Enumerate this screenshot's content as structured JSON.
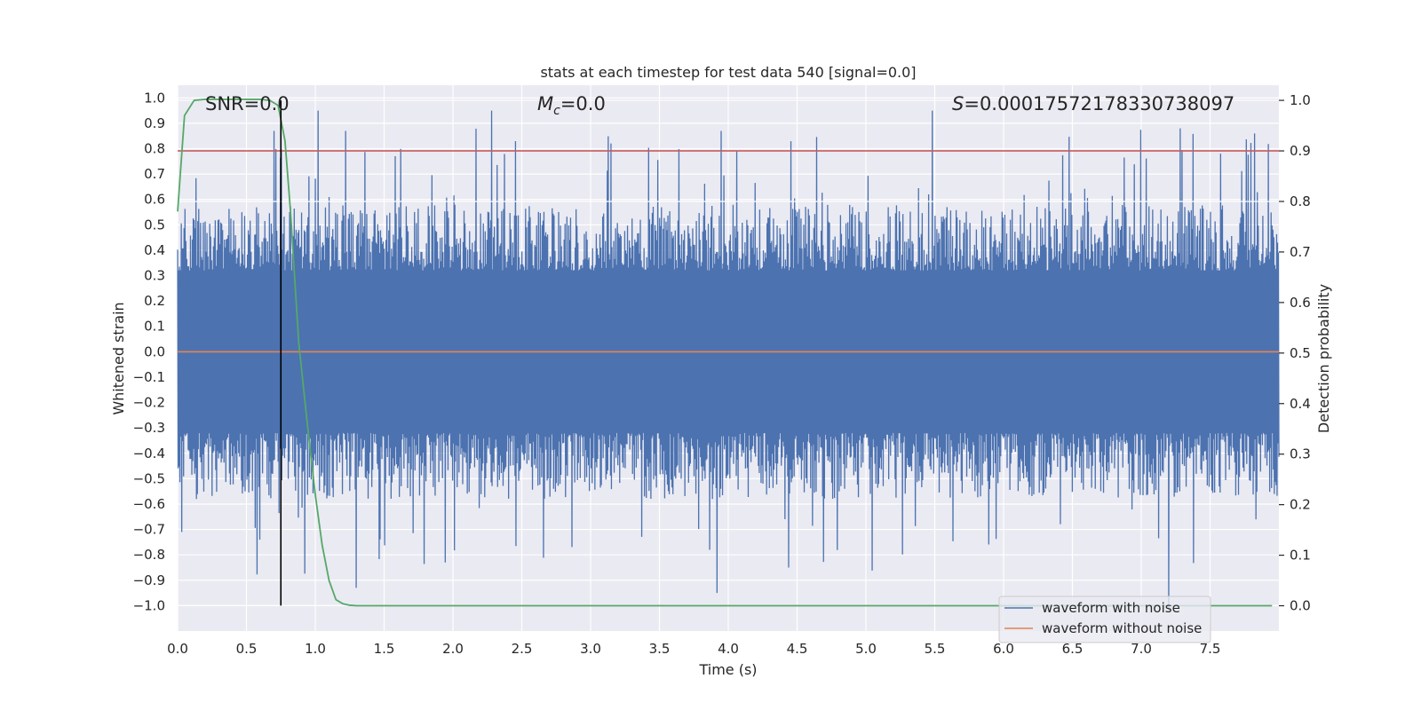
{
  "chart_data": {
    "type": "line",
    "title": "stats at each timestep for test data 540 [signal=0.0]",
    "xlabel": "Time (s)",
    "ylabel_left": "Whitened strain",
    "ylabel_right": "Detection probability",
    "xlim": [
      0.0,
      8.0
    ],
    "ylim_left": [
      -1.1,
      1.05
    ],
    "ylim_right": [
      -0.05,
      1.03
    ],
    "x_ticks": [
      0.0,
      0.5,
      1.0,
      1.5,
      2.0,
      2.5,
      3.0,
      3.5,
      4.0,
      4.5,
      5.0,
      5.5,
      6.0,
      6.5,
      7.0,
      7.5
    ],
    "x_tick_labels": [
      "0.0",
      "0.5",
      "1.0",
      "1.5",
      "2.0",
      "2.5",
      "3.0",
      "3.5",
      "4.0",
      "4.5",
      "5.0",
      "5.5",
      "6.0",
      "6.5",
      "7.0",
      "7.5"
    ],
    "y_left_ticks": [
      1.0,
      0.9,
      0.8,
      0.7,
      0.6,
      0.5,
      0.4,
      0.3,
      0.2,
      0.1,
      0.0,
      -0.1,
      -0.2,
      -0.3,
      -0.4,
      -0.5,
      -0.6,
      -0.7,
      -0.8,
      -0.9,
      -1.0
    ],
    "y_left_tick_labels": [
      "1.0",
      "0.9",
      "0.8",
      "0.7",
      "0.6",
      "0.5",
      "0.4",
      "0.3",
      "0.2",
      "0.1",
      "0.0",
      "−0.1",
      "−0.2",
      "−0.3",
      "−0.4",
      "−0.5",
      "−0.6",
      "−0.7",
      "−0.8",
      "−0.9",
      "−1.0"
    ],
    "y_right_ticks": [
      1.0,
      0.9,
      0.8,
      0.7,
      0.6,
      0.5,
      0.4,
      0.3,
      0.2,
      0.1,
      0.0
    ],
    "y_right_tick_labels": [
      "1.0",
      "0.9",
      "0.8",
      "0.7",
      "0.6",
      "0.5",
      "0.4",
      "0.3",
      "0.2",
      "0.1",
      "0.0"
    ],
    "annotations": {
      "snr_label": "SNR=0.0",
      "mc_symbol": "M",
      "mc_sub": "c",
      "mc_value": "=0.0",
      "s_symbol": "S",
      "s_value": "=0.00017572178330738097"
    },
    "threshold_y": 0.9,
    "marker_time": 0.75,
    "series": [
      {
        "name": "waveform with noise",
        "axis": "left",
        "color": "#4c72b0",
        "description_values": "dense noise, core amplitude about ±0.35, peaks up to about ±0.95",
        "notable_peaks": [
          {
            "x": 0.7,
            "y": 0.87
          },
          {
            "x": 1.02,
            "y": 0.95
          },
          {
            "x": 1.22,
            "y": 0.87
          },
          {
            "x": 2.28,
            "y": 0.95
          },
          {
            "x": 3.95,
            "y": 0.87
          },
          {
            "x": 5.48,
            "y": 0.95
          },
          {
            "x": 7.28,
            "y": 0.88
          },
          {
            "x": 7.82,
            "y": 0.86
          }
        ],
        "notable_troughs": [
          {
            "x": 0.6,
            "y": -0.74
          },
          {
            "x": 1.3,
            "y": -0.93
          },
          {
            "x": 3.92,
            "y": -0.95
          },
          {
            "x": 4.44,
            "y": -0.85
          },
          {
            "x": 7.2,
            "y": -1.02
          }
        ]
      },
      {
        "name": "waveform without noise",
        "axis": "left",
        "color": "#dd8452",
        "x": [
          0.0,
          8.0
        ],
        "y": [
          0.0,
          0.0
        ]
      },
      {
        "name": "detection probability",
        "axis": "right",
        "color": "#55a868",
        "x": [
          0.0,
          0.05,
          0.12,
          0.2,
          0.3,
          0.5,
          0.6,
          0.67,
          0.73,
          0.78,
          0.82,
          0.88,
          0.95,
          1.0,
          1.05,
          1.1,
          1.15,
          1.2,
          1.25,
          1.3,
          1.4,
          1.6,
          2.0,
          3.0,
          4.0,
          5.0,
          6.0,
          7.0,
          7.95
        ],
        "y": [
          0.78,
          0.97,
          1.0,
          1.002,
          1.002,
          1.002,
          1.002,
          1.0,
          0.99,
          0.92,
          0.78,
          0.52,
          0.34,
          0.22,
          0.12,
          0.05,
          0.012,
          0.004,
          0.001,
          0.0,
          0.0,
          0.0,
          0.0,
          0.0,
          0.0,
          0.0,
          0.0,
          0.0,
          0.0
        ]
      }
    ],
    "legend": {
      "location": "lower-right",
      "entries": [
        {
          "label": "waveform with noise",
          "color": "#4c72b0"
        },
        {
          "label": "waveform without noise",
          "color": "#dd8452"
        }
      ]
    },
    "colors": {
      "background": "#eaeaf2",
      "grid": "#ffffff",
      "threshold": "#c44e52",
      "marker": "#000000"
    }
  }
}
